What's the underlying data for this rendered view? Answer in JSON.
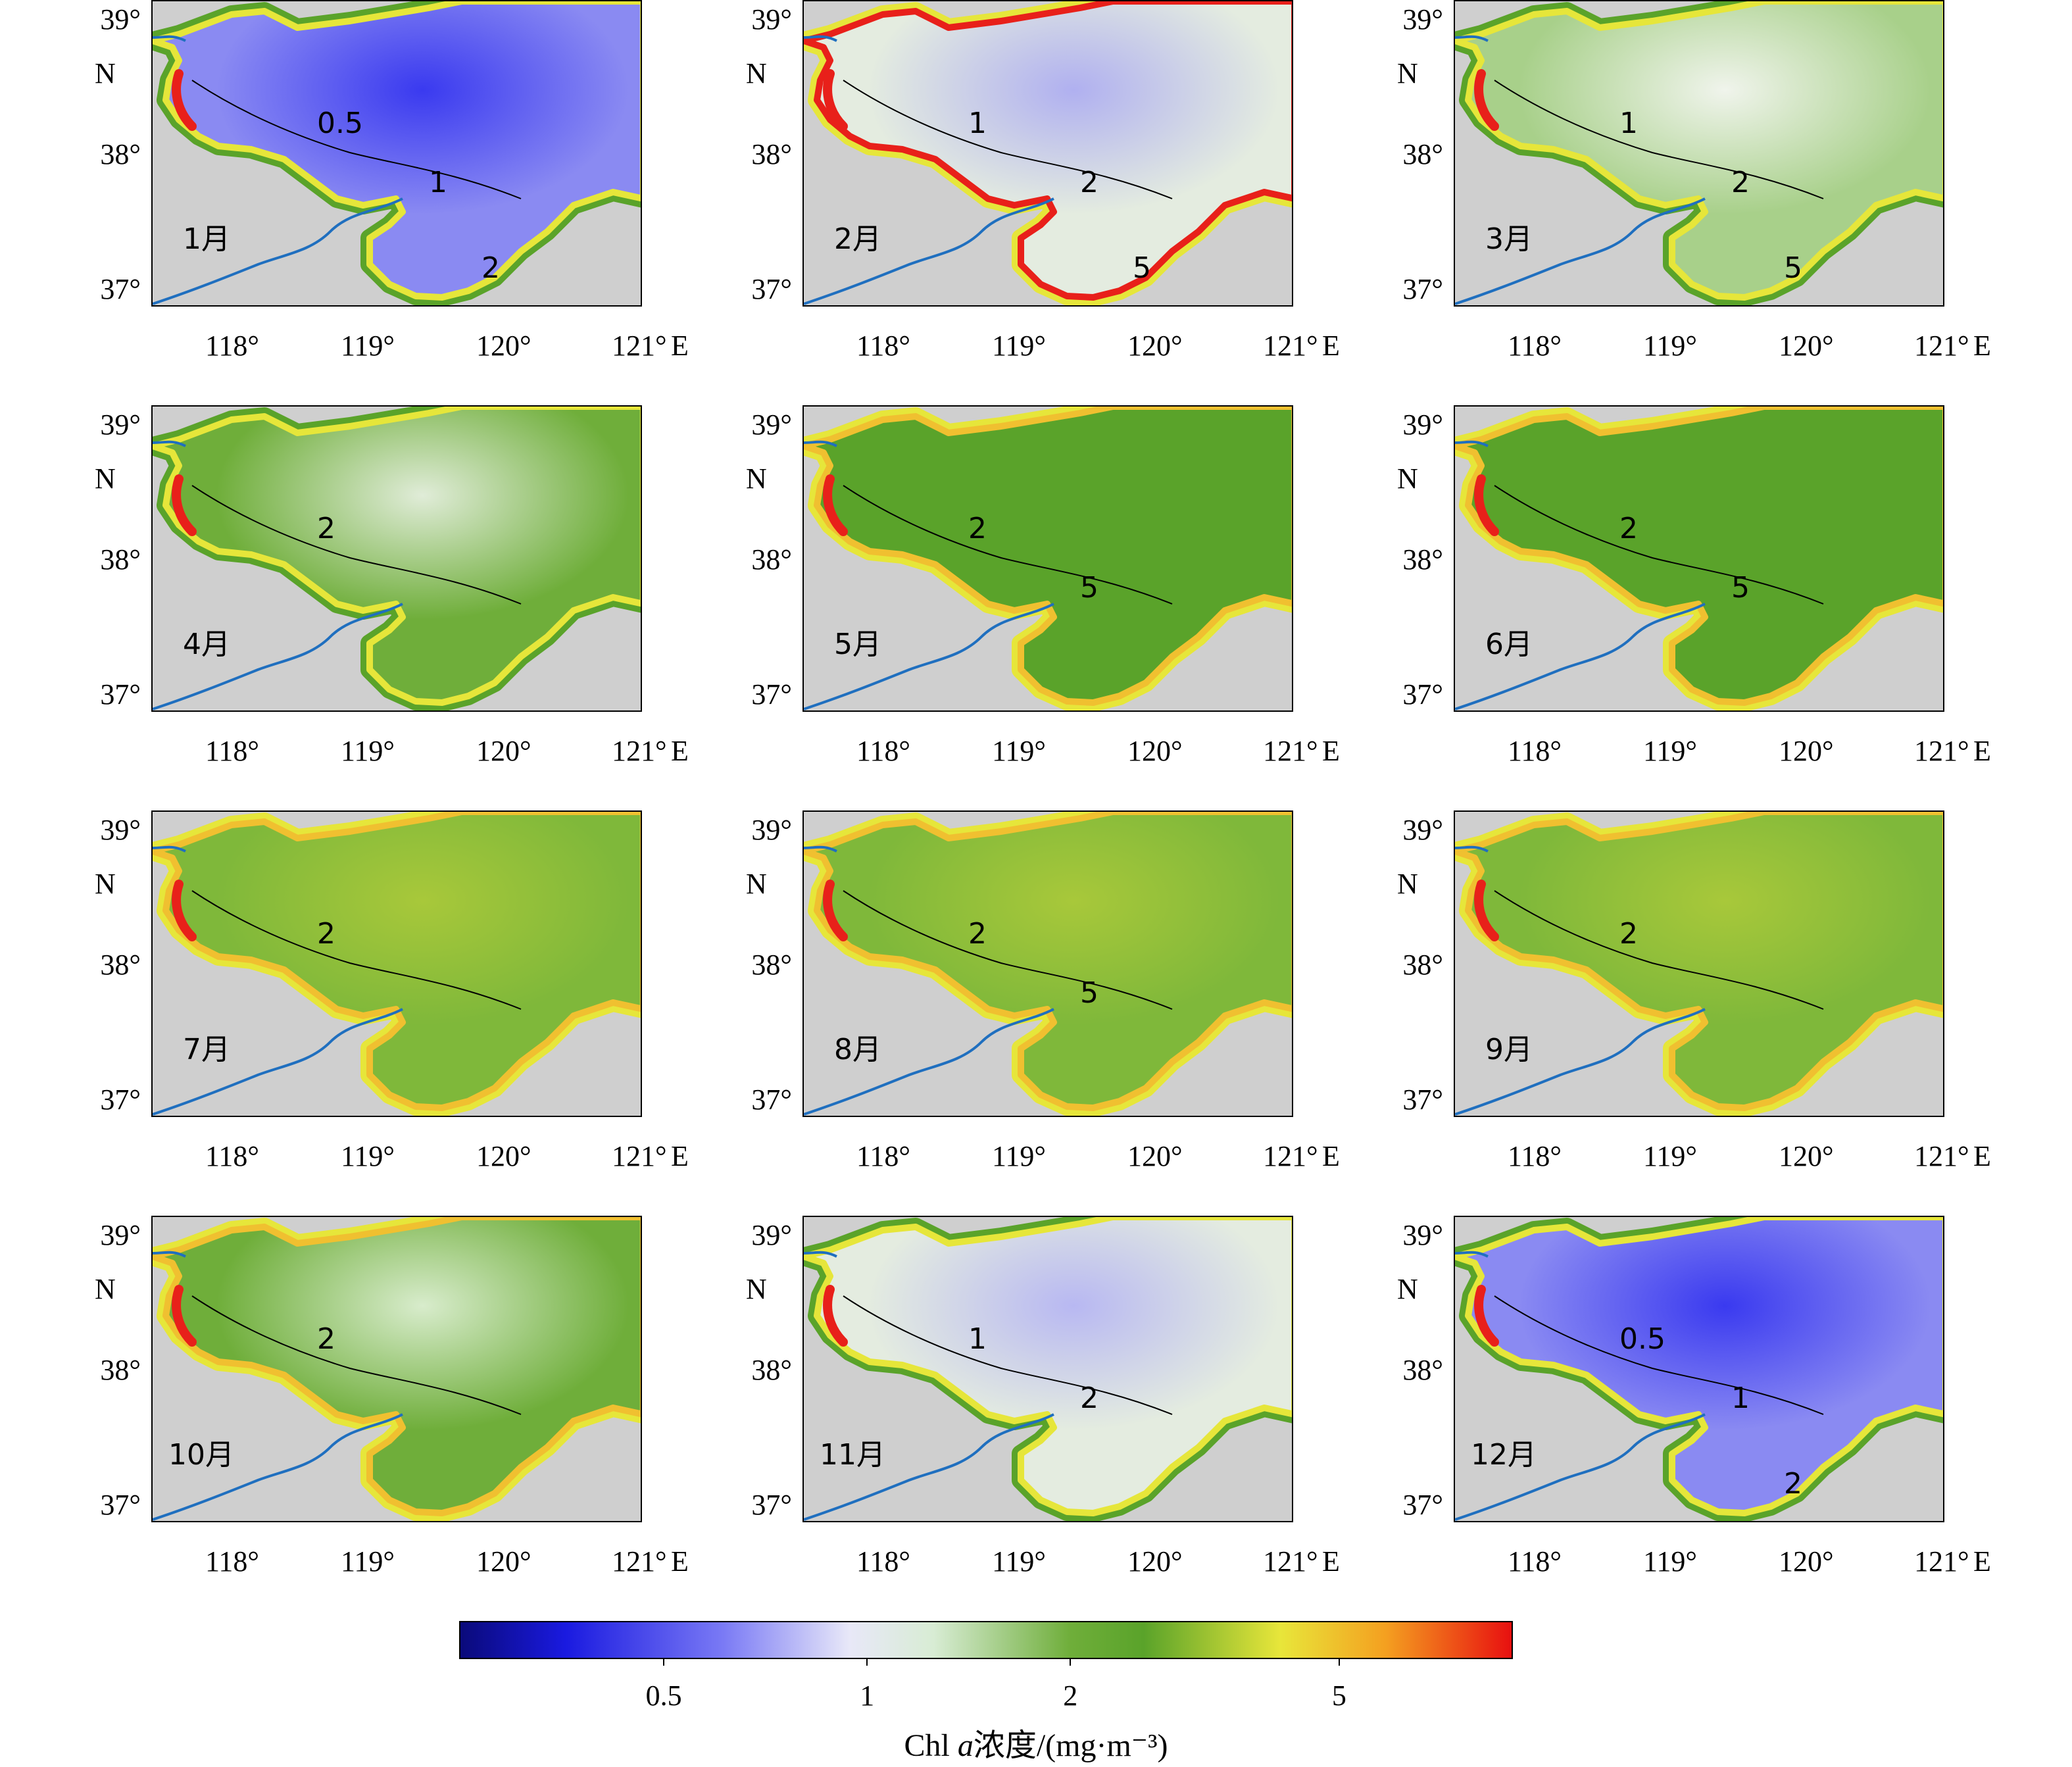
{
  "axes": {
    "lat_ticks": [
      "39°",
      "38°",
      "37°"
    ],
    "lat_unit": "N",
    "lon_ticks": [
      "118°",
      "119°",
      "120°",
      "121°"
    ],
    "lon_unit": "E"
  },
  "chart_data": {
    "type": "heatmap",
    "panels": [
      {
        "label": "1月",
        "contours": [
          "0.5",
          "1",
          "2"
        ],
        "style": "low"
      },
      {
        "label": "2月",
        "contours": [
          "1",
          "2",
          "5"
        ],
        "style": "feb"
      },
      {
        "label": "3月",
        "contours": [
          "1",
          "2",
          "5"
        ],
        "style": "mar"
      },
      {
        "label": "4月",
        "contours": [
          "2"
        ],
        "style": "apr"
      },
      {
        "label": "5月",
        "contours": [
          "2",
          "5"
        ],
        "style": "green"
      },
      {
        "label": "6月",
        "contours": [
          "2",
          "5"
        ],
        "style": "green"
      },
      {
        "label": "7月",
        "contours": [
          "2"
        ],
        "style": "yellow"
      },
      {
        "label": "8月",
        "contours": [
          "2",
          "5"
        ],
        "style": "yellow"
      },
      {
        "label": "9月",
        "contours": [
          "2"
        ],
        "style": "yellow"
      },
      {
        "label": "10月",
        "contours": [
          "2"
        ],
        "style": "oct"
      },
      {
        "label": "11月",
        "contours": [
          "1",
          "2"
        ],
        "style": "nov"
      },
      {
        "label": "12月",
        "contours": [
          "0.5",
          "1",
          "2"
        ],
        "style": "low"
      }
    ],
    "colorbar": {
      "ticks": [
        "0.5",
        "1",
        "2",
        "5"
      ],
      "tick_values": [
        0.5,
        1,
        2,
        5
      ],
      "range": [
        0.25,
        9
      ],
      "scale": "log",
      "title_prefix": "Chl ",
      "title_italic": "a",
      "title_suffix": "浓度/(mg·m⁻³)"
    }
  },
  "colors": {
    "land": "#cfcfcf",
    "river": "#1f6fbf",
    "contour": "#000000",
    "low": "#3a3af0",
    "mid": "#e8f0e8",
    "green": "#5aa32a",
    "yellow": "#e6e63a",
    "red": "#e8201a"
  }
}
